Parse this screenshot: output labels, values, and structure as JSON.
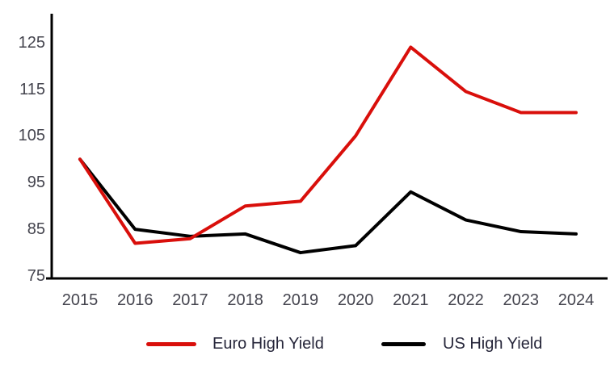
{
  "chart_data": {
    "type": "line",
    "title": "",
    "xlabel": "",
    "ylabel": "",
    "x": [
      2015,
      2016,
      2017,
      2018,
      2019,
      2020,
      2021,
      2022,
      2023,
      2024
    ],
    "series": [
      {
        "name": "Euro High Yield",
        "color": "#d90f0b",
        "values": [
          100,
          82,
          83,
          90,
          91,
          105,
          124,
          114.5,
          110,
          110
        ]
      },
      {
        "name": "US High Yield",
        "color": "#000000",
        "values": [
          100,
          85,
          83.5,
          84,
          80,
          81.5,
          93,
          87,
          84.5,
          84
        ]
      }
    ],
    "ylim": [
      75,
      125
    ],
    "yticks": [
      75,
      85,
      95,
      105,
      115,
      125
    ],
    "grid": false,
    "legend_position": "bottom",
    "axis_color": "#000000"
  }
}
